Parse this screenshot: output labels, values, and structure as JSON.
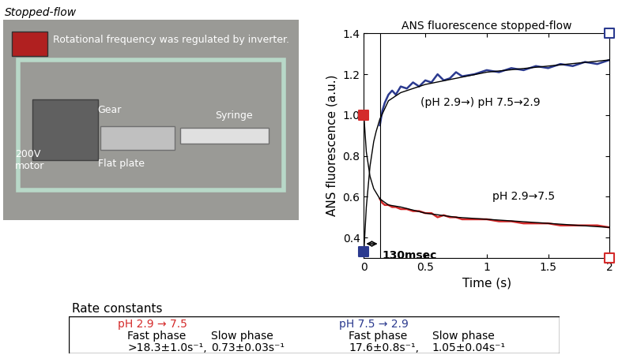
{
  "photo": {
    "title": "Stopped-flow",
    "labels": [
      "Rotational frequency was regulated by inverter.",
      "Gear",
      "200V\nmotor",
      "Flat plate",
      "Syringe"
    ]
  },
  "chart_data": {
    "type": "line",
    "title": "ANS fluorescence stopped-flow",
    "x_label": "Time (s)",
    "y_label": "ANS fluorescence (a.u.)",
    "xlim": [
      0,
      2
    ],
    "xticks": [
      0,
      0.5,
      1,
      1.5,
      2
    ],
    "ylim": [
      0.3,
      1.4
    ],
    "yticks": [
      0.4,
      0.6,
      0.8,
      {
        "value": 1,
        "label": "1.0"
      },
      1.2,
      1.4
    ],
    "series": [
      {
        "type": "line",
        "color": "#2b3a8f",
        "x": [
          0.13,
          0.15,
          0.17,
          0.2,
          0.23,
          0.26,
          0.3,
          0.35,
          0.4,
          0.45,
          0.5,
          0.55,
          0.6,
          0.65,
          0.7,
          0.75,
          0.8,
          0.9,
          1.0,
          1.1,
          1.2,
          1.3,
          1.4,
          1.5,
          1.6,
          1.7,
          1.8,
          1.9,
          2.0
        ],
        "values": [
          0.95,
          1.02,
          1.06,
          1.1,
          1.12,
          1.1,
          1.14,
          1.13,
          1.16,
          1.14,
          1.17,
          1.16,
          1.2,
          1.17,
          1.18,
          1.21,
          1.19,
          1.2,
          1.22,
          1.21,
          1.23,
          1.22,
          1.24,
          1.23,
          1.25,
          1.24,
          1.26,
          1.25,
          1.27
        ]
      },
      {
        "type": "line",
        "color": "#d42a2a",
        "x": [
          0.13,
          0.15,
          0.17,
          0.2,
          0.23,
          0.26,
          0.3,
          0.35,
          0.4,
          0.45,
          0.5,
          0.55,
          0.6,
          0.65,
          0.7,
          0.75,
          0.8,
          0.9,
          1.0,
          1.1,
          1.2,
          1.3,
          1.4,
          1.5,
          1.6,
          1.7,
          1.8,
          1.9,
          2.0
        ],
        "values": [
          0.59,
          0.57,
          0.56,
          0.56,
          0.55,
          0.55,
          0.54,
          0.54,
          0.53,
          0.53,
          0.52,
          0.52,
          0.5,
          0.51,
          0.5,
          0.5,
          0.49,
          0.49,
          0.49,
          0.48,
          0.48,
          0.47,
          0.47,
          0.47,
          0.46,
          0.46,
          0.46,
          0.46,
          0.45
        ]
      },
      {
        "type": "line",
        "color": "#000000",
        "x": [
          0,
          0.02,
          0.05,
          0.08,
          0.1,
          0.13,
          0.2,
          0.3,
          0.5,
          0.75,
          1.0,
          1.5,
          2.0
        ],
        "values": [
          0.33,
          0.55,
          0.75,
          0.87,
          0.92,
          0.98,
          1.07,
          1.11,
          1.15,
          1.18,
          1.21,
          1.24,
          1.27
        ]
      },
      {
        "type": "line",
        "color": "#000000",
        "x": [
          0,
          0.02,
          0.05,
          0.08,
          0.1,
          0.13,
          0.2,
          0.3,
          0.5,
          0.75,
          1.0,
          1.5,
          2.0
        ],
        "values": [
          1.0,
          0.82,
          0.7,
          0.64,
          0.62,
          0.59,
          0.56,
          0.55,
          0.52,
          0.5,
          0.49,
          0.47,
          0.45
        ]
      },
      {
        "type": "scatter",
        "color": "#d42a2a",
        "marker": "square",
        "x": [
          0
        ],
        "values": [
          1.0
        ]
      },
      {
        "type": "scatter",
        "color": "#2b3a8f",
        "marker": "square",
        "x": [
          0
        ],
        "values": [
          0.33
        ]
      },
      {
        "type": "scatter",
        "color": "#2b3a8f",
        "marker": "open_square",
        "x": [
          2
        ],
        "values": [
          1.4
        ]
      },
      {
        "type": "scatter",
        "color": "#d42a2a",
        "marker": "open_square",
        "x": [
          2
        ],
        "values": [
          0.3
        ]
      }
    ],
    "annotations": [
      {
        "text": "(pH 2.9→) pH 7.5→2.9",
        "x": 0.95,
        "y": 1.06
      },
      {
        "text": "pH 2.9→7.5",
        "x": 1.3,
        "y": 0.6
      }
    ],
    "dead_time": {
      "value": 0.13,
      "label": "130msec",
      "y": 0.37
    }
  },
  "table": {
    "title": "Rate constants",
    "groups": [
      {
        "header": "pH 2.9 → 7.5",
        "color": "#d42a2a",
        "columns": [
          [
            "Fast phase",
            ">18.3±1.0s⁻¹,"
          ],
          [
            "Slow phase",
            "0.73±0.03s⁻¹"
          ]
        ]
      },
      {
        "header": "pH 7.5 → 2.9",
        "color": "#2b3a8f",
        "columns": [
          [
            "Fast phase",
            "17.6±0.8s⁻¹,"
          ],
          [
            "Slow phase",
            "1.05±0.04s⁻¹"
          ]
        ]
      }
    ]
  }
}
